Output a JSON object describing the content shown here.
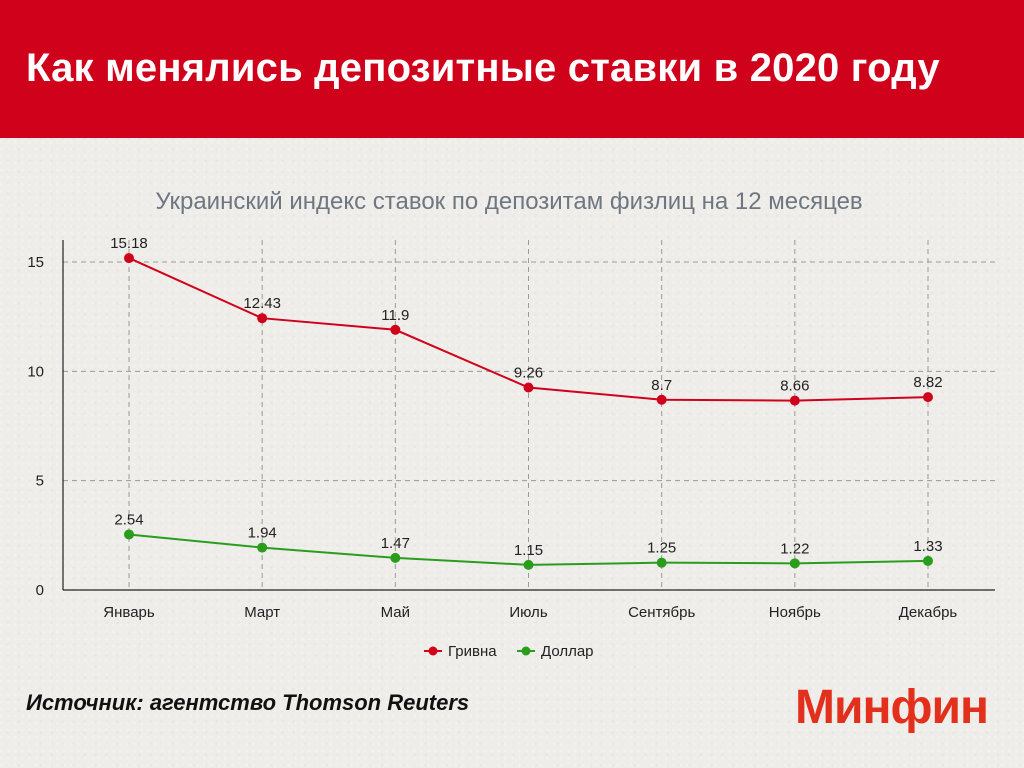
{
  "header": {
    "title": "Как менялись депозитные ставки в 2020 году"
  },
  "footer": {
    "source": "Источник: агентство Thomson Reuters",
    "logo_text": "Минфин"
  },
  "colors": {
    "header_bg": "#d0021b",
    "hryvnia": "#d0021b",
    "dollar": "#2a9d1c",
    "logo": "#e2301c"
  },
  "chart_data": {
    "type": "line",
    "title": "Украинский индекс ставок по депозитам физлиц на 12 месяцев",
    "categories": [
      "Январь",
      "Март",
      "Май",
      "Июль",
      "Сентябрь",
      "Ноябрь",
      "Декабрь"
    ],
    "series": [
      {
        "name": "Гривна",
        "values": [
          15.18,
          12.43,
          11.9,
          9.26,
          8.7,
          8.66,
          8.82
        ],
        "labels": [
          "15.18",
          "12.43",
          "11.9",
          "9.26",
          "8.7",
          "8.66",
          "8.82"
        ],
        "color": "#d0021b"
      },
      {
        "name": "Доллар",
        "values": [
          2.54,
          1.94,
          1.47,
          1.15,
          1.25,
          1.22,
          1.33
        ],
        "labels": [
          "2.54",
          "1.94",
          "1.47",
          "1.15",
          "1.25",
          "1.22",
          "1.33"
        ],
        "color": "#2a9d1c"
      }
    ],
    "yticks": [
      "0",
      "5",
      "10",
      "15"
    ],
    "ylim": [
      0,
      15
    ],
    "grid": true,
    "legend_position": "bottom"
  }
}
